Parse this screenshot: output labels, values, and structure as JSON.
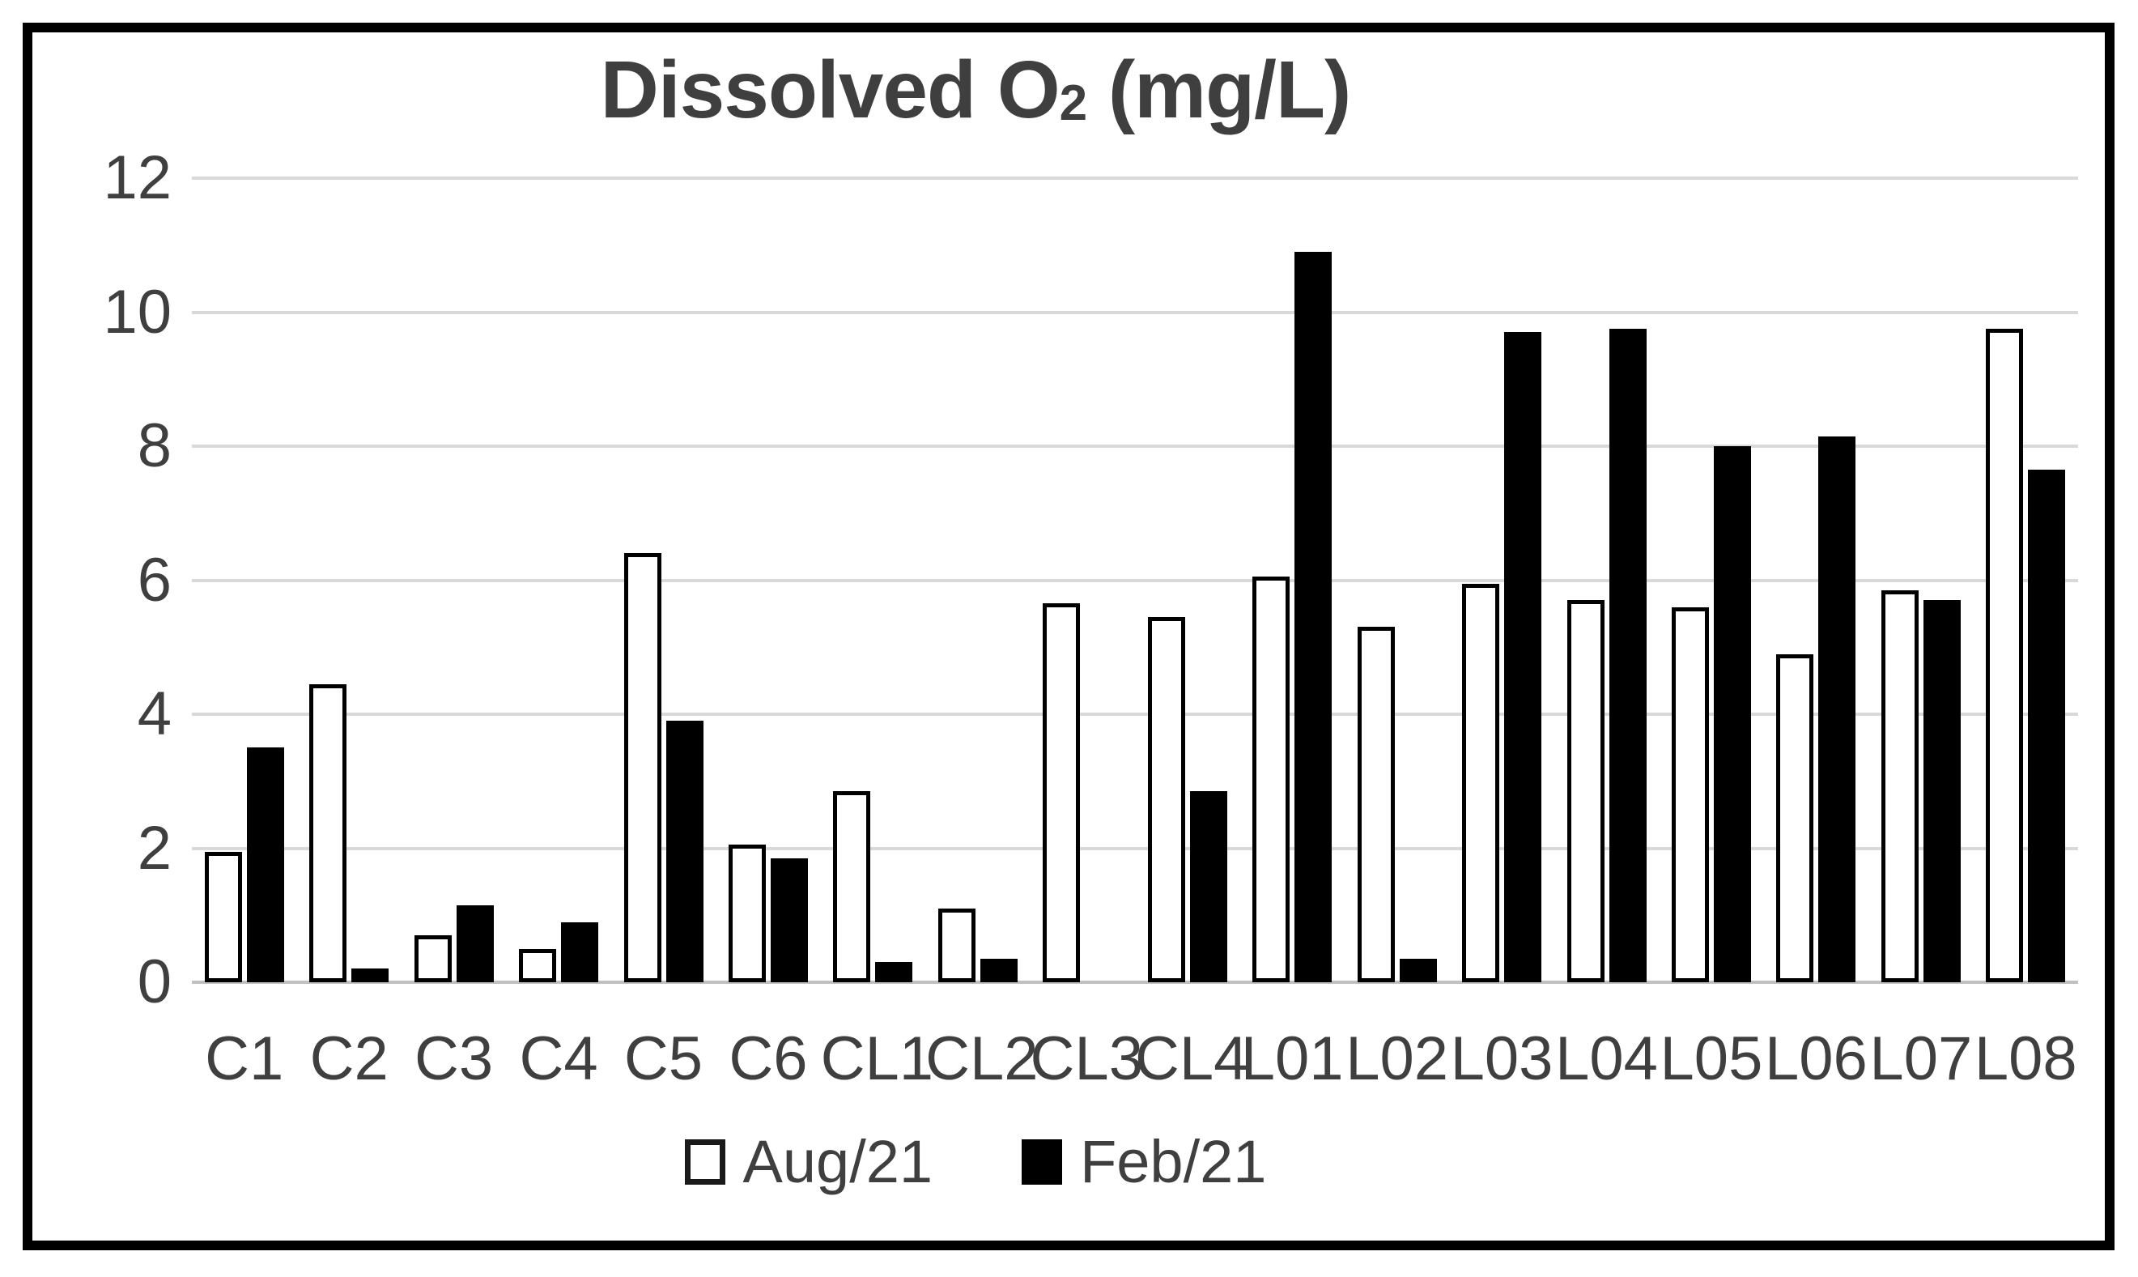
{
  "colors": {
    "text": "#3f3f3f",
    "gridline": "#d9d9d9",
    "axis_line": "#c0c0c0",
    "frame_border": "#000000",
    "background": "#ffffff"
  },
  "chart_data": {
    "type": "bar",
    "title": "Dissolved O2 (mg/L)",
    "title_prefix": "Dissolved O",
    "title_subscript": "2",
    "title_suffix": " (mg/L)",
    "xlabel": "",
    "ylabel": "",
    "ylim": [
      0,
      12
    ],
    "yticks": [
      0,
      2,
      4,
      6,
      8,
      10,
      12
    ],
    "grid": true,
    "legend_position": "bottom",
    "categories": [
      "C1",
      "C2",
      "C3",
      "C4",
      "C5",
      "C6",
      "CL1",
      "CL2",
      "CL3",
      "CL4",
      "L01",
      "L02",
      "L03",
      "L04",
      "L05",
      "L06",
      "L07",
      "L08"
    ],
    "series": [
      {
        "name": "Aug/21",
        "fill": "#ffffff",
        "border": "#000000",
        "values": [
          1.95,
          4.45,
          0.7,
          0.5,
          6.4,
          2.05,
          2.85,
          1.1,
          5.65,
          5.45,
          6.05,
          5.3,
          5.95,
          5.7,
          5.6,
          4.9,
          5.85,
          9.75
        ]
      },
      {
        "name": "Feb/21",
        "fill": "#000000",
        "border": "#000000",
        "values": [
          3.5,
          0.2,
          1.15,
          0.9,
          3.9,
          1.85,
          0.3,
          0.35,
          null,
          2.85,
          10.9,
          0.35,
          9.7,
          9.75,
          8.0,
          8.15,
          5.7,
          7.65
        ]
      }
    ]
  }
}
